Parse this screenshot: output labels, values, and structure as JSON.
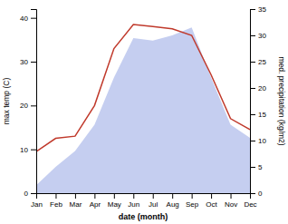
{
  "chart_data": {
    "type": "line",
    "categories": [
      "Jan",
      "Feb",
      "Mar",
      "Apr",
      "May",
      "Jun",
      "Jul",
      "Aug",
      "Sep",
      "Oct",
      "Nov",
      "Dec"
    ],
    "xlabel": "date (month)",
    "ylabel": "max temp (C)",
    "y2label": "med. precipitation (kg/m2)",
    "ylim": [
      0,
      42
    ],
    "yticks": [
      0,
      10,
      20,
      30,
      40
    ],
    "y2lim": [
      0,
      35
    ],
    "y2ticks": [
      0,
      5,
      10,
      15,
      20,
      25,
      30,
      35
    ],
    "grid": false,
    "series": [
      {
        "type": "area",
        "axis": "y2",
        "color": "#c5cef0",
        "values": [
          1.5,
          5.0,
          8.0,
          13.0,
          22.0,
          29.5,
          29.0,
          30.0,
          31.5,
          22.0,
          13.0,
          10.5
        ]
      },
      {
        "type": "line",
        "color": "#c0392b",
        "values": [
          9.5,
          12.5,
          13.0,
          20.0,
          33.0,
          38.5,
          38.0,
          37.5,
          36.0,
          27.0,
          17.0,
          14.5
        ]
      }
    ]
  }
}
